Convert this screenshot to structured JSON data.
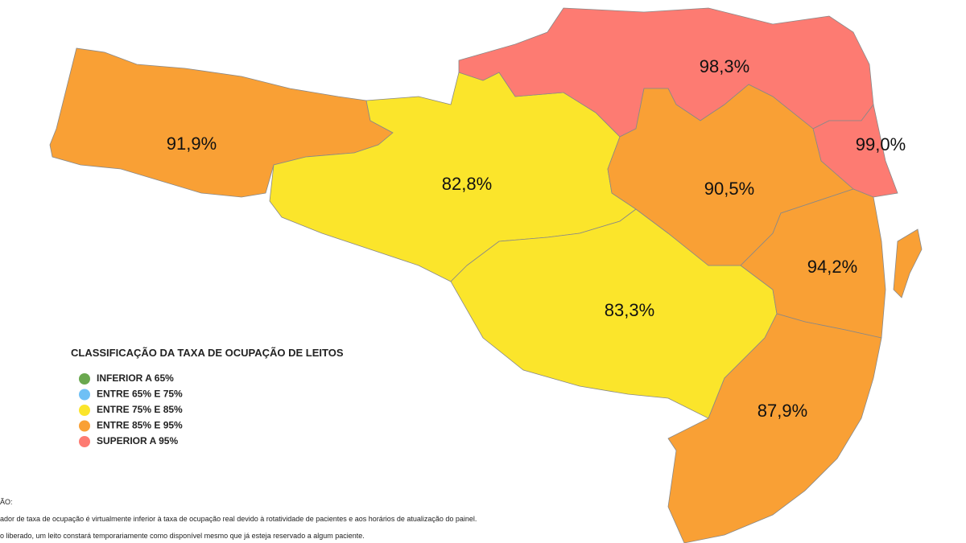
{
  "map": {
    "regions": [
      {
        "label": "91,9%",
        "color": "#f9a035"
      },
      {
        "label": "82,8%",
        "color": "#fbe52b"
      },
      {
        "label": "83,3%",
        "color": "#fbe52b"
      },
      {
        "label": "98,3%",
        "color": "#fd7b72"
      },
      {
        "label": "99,0%",
        "color": "#fd7b72"
      },
      {
        "label": "90,5%",
        "color": "#f9a035"
      },
      {
        "label": "94,2%",
        "color": "#f9a035"
      },
      {
        "label": "87,9%",
        "color": "#f9a035"
      }
    ],
    "legend": {
      "title": "CLASSIFICAÇÃO DA TAXA DE OCUPAÇÃO DE LEITOS",
      "items": [
        {
          "label": "INFERIOR A 65%",
          "color": "#6aa84f"
        },
        {
          "label": "ENTRE 65% E 75%",
          "color": "#6fc0f5"
        },
        {
          "label": "ENTRE 75% E 85%",
          "color": "#fbe52b"
        },
        {
          "label": "ENTRE 85% E 95%",
          "color": "#f9a035"
        },
        {
          "label": "SUPERIOR A 95%",
          "color": "#fd7b72"
        }
      ]
    },
    "notes": {
      "heading": "ÃO:",
      "lines": [
        "ador de taxa de ocupação é virtualmente inferior à taxa de ocupação real devido à rotatividade de pacientes e aos horários de atualização do painel.",
        "o liberado, um leito constará temporariamente como disponível mesmo que já esteja reservado a algum paciente."
      ]
    }
  }
}
